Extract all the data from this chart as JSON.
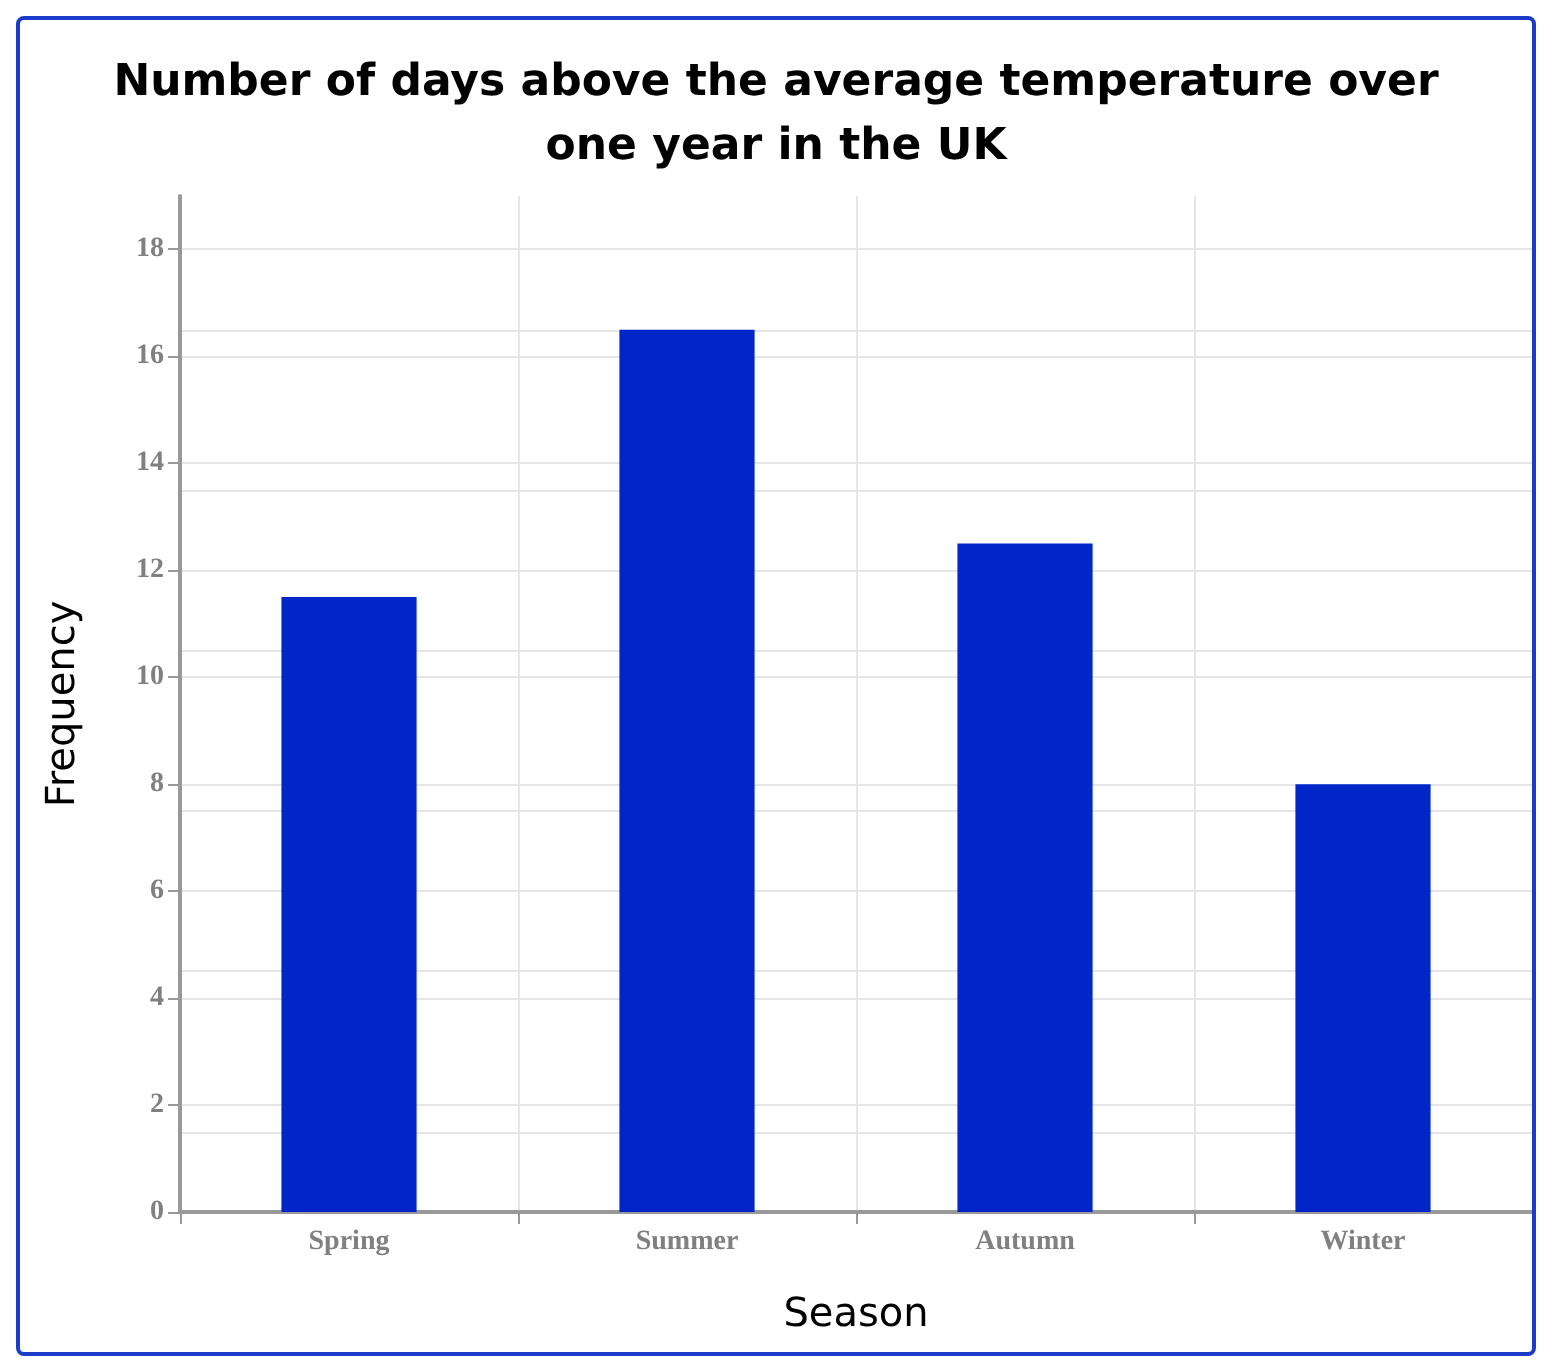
{
  "chart_data": {
    "type": "bar",
    "title": "Number of days above the average temperature over\none year in the UK",
    "xlabel": "Season",
    "ylabel": "Frequency",
    "categories": [
      "Spring",
      "Summer",
      "Autumn",
      "Winter"
    ],
    "values": [
      11.5,
      16.5,
      12.5,
      8
    ],
    "color": "#0026c8",
    "ylim": [
      0,
      19
    ],
    "yticks": [
      0,
      2,
      4,
      6,
      8,
      10,
      12,
      14,
      16,
      18
    ],
    "grid": true
  }
}
